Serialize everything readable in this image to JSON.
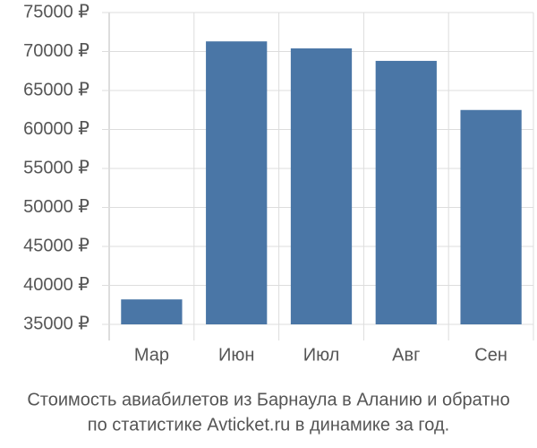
{
  "chart_data": {
    "type": "bar",
    "title": [
      "Стоимость авиабилетов из Барнаула в Аланию и обратно",
      "по статистике Avticket.ru в динамике за год."
    ],
    "categories": [
      "Мар",
      "Июн",
      "Июл",
      "Авг",
      "Сен"
    ],
    "values": [
      38200,
      71300,
      70400,
      68800,
      62500
    ],
    "color": "#4a76a6",
    "ylim": [
      35000,
      75000
    ],
    "yticks": [
      {
        "value": 35000,
        "label": "35000 ₽"
      },
      {
        "value": 40000,
        "label": "40000 ₽"
      },
      {
        "value": 45000,
        "label": "45000 ₽"
      },
      {
        "value": 50000,
        "label": "50000 ₽"
      },
      {
        "value": 55000,
        "label": "55000 ₽"
      },
      {
        "value": 60000,
        "label": "60000 ₽"
      },
      {
        "value": 65000,
        "label": "65000 ₽"
      },
      {
        "value": 70000,
        "label": "70000 ₽"
      },
      {
        "value": 75000,
        "label": "75000 ₽"
      }
    ],
    "grid": true
  }
}
